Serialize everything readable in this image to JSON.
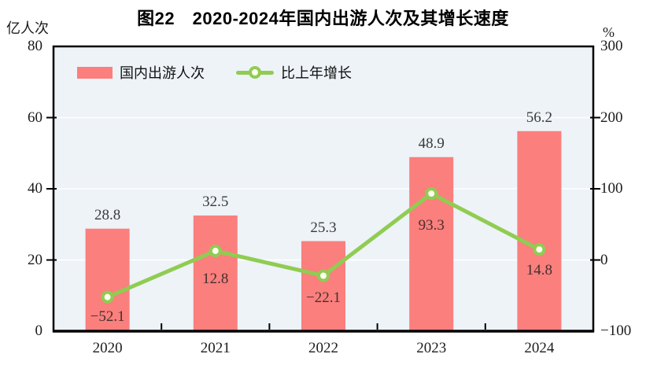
{
  "title": "图22　2020-2024年国内出游人次及其增长速度",
  "left_axis": {
    "unit": "亿人次",
    "min": 0,
    "max": 80,
    "tick_step": 20,
    "tick_labels": [
      "0",
      "20",
      "40",
      "60",
      "80"
    ]
  },
  "right_axis": {
    "unit": "%",
    "min": -100,
    "max": 300,
    "tick_step": 100,
    "tick_labels": [
      "−100",
      "0",
      "100",
      "200",
      "300"
    ]
  },
  "legend": {
    "bar_label": "国内出游人次",
    "line_label": "比上年增长"
  },
  "colors": {
    "bar": "#fa7f7d",
    "line": "#90cc52",
    "marker_fill": "#fffef2",
    "plot_bg": "#edf3f7",
    "grid": "#ffffff",
    "axis": "#000000",
    "bar_value_text": "#3a3a3a",
    "growth_value_text": "#46302d"
  },
  "chart_data": {
    "type": "bar+line",
    "categories": [
      "2020",
      "2021",
      "2022",
      "2023",
      "2024"
    ],
    "series": [
      {
        "name": "国内出游人次",
        "type": "bar",
        "axis": "left",
        "unit": "亿人次",
        "values": [
          28.8,
          32.5,
          25.3,
          48.9,
          56.2
        ],
        "labels": [
          "28.8",
          "32.5",
          "25.3",
          "48.9",
          "56.2"
        ]
      },
      {
        "name": "比上年增长",
        "type": "line",
        "axis": "right",
        "unit": "%",
        "values": [
          -52.1,
          12.8,
          -22.1,
          93.3,
          14.8
        ],
        "labels": [
          "−52.1",
          "12.8",
          "−22.1",
          "93.3",
          "14.8"
        ]
      }
    ],
    "left_ylim": [
      0,
      80
    ],
    "right_ylim": [
      -100,
      300
    ],
    "grid": "horizontal",
    "legend_position": "top-left-inside"
  }
}
